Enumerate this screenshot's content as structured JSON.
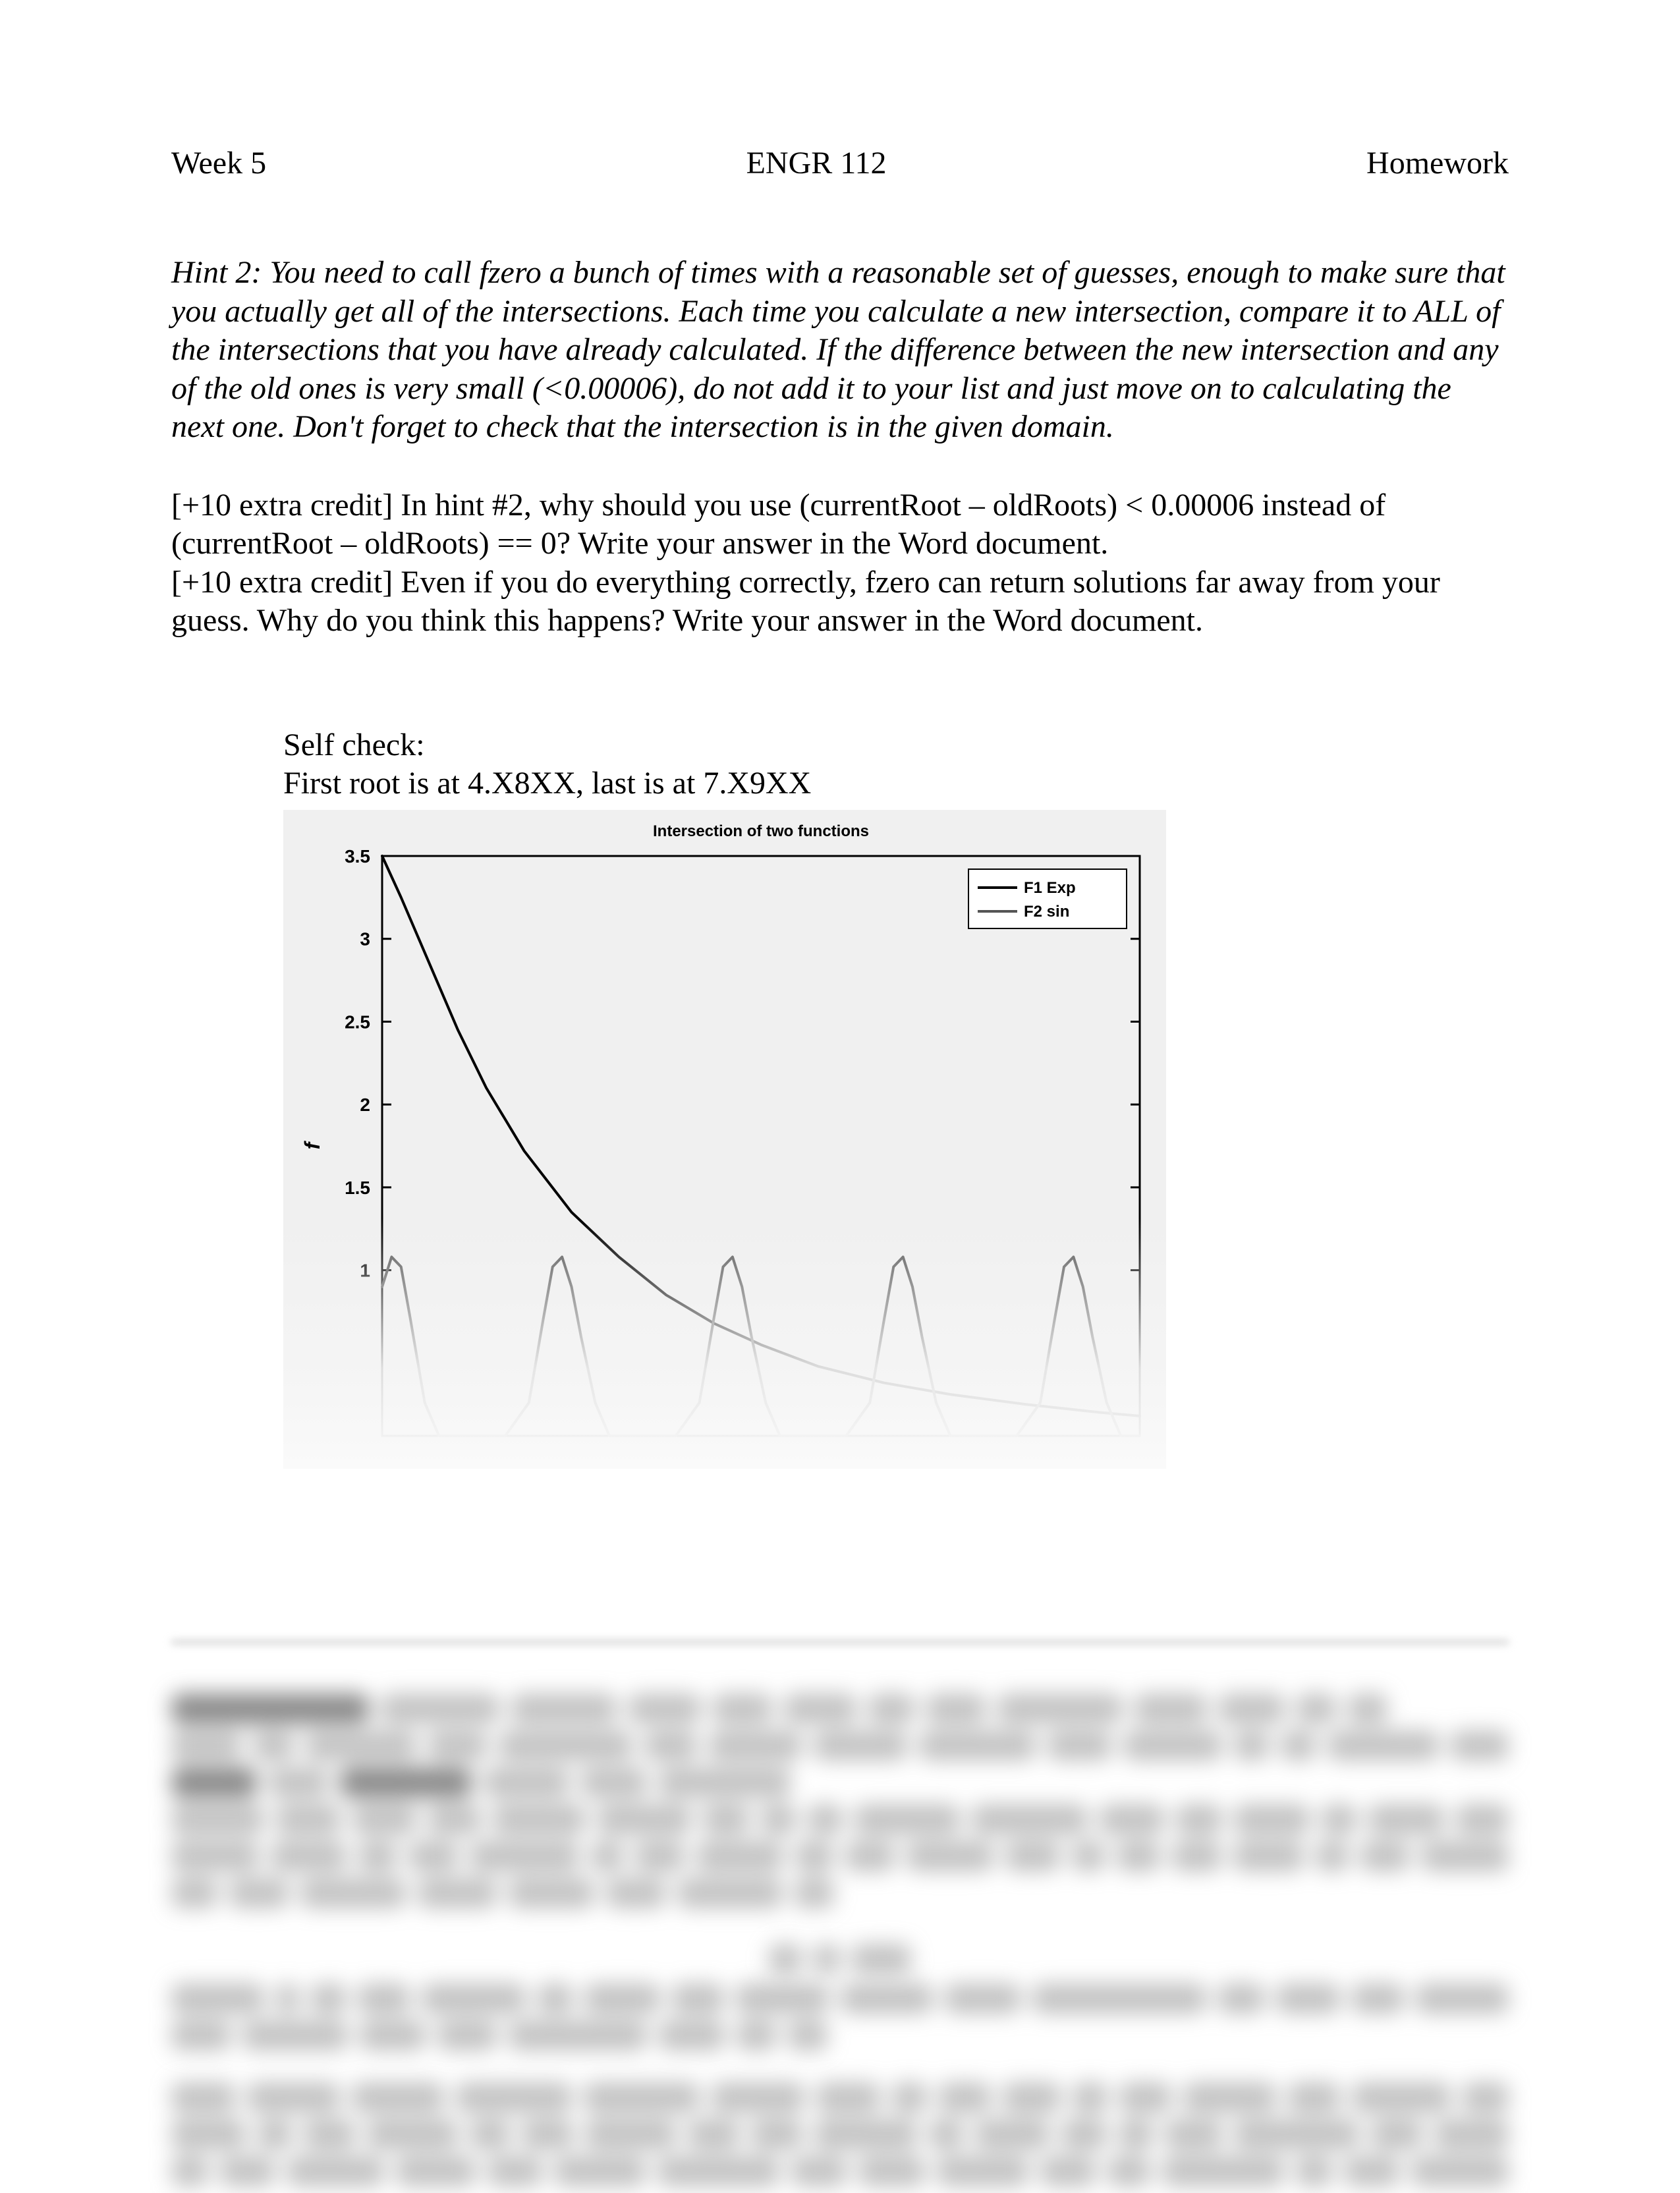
{
  "header": {
    "left": "Week 5",
    "center": "ENGR 112",
    "right": "Homework"
  },
  "hint2": "Hint 2: You need to call fzero a bunch of times with a reasonable set of guesses, enough to make sure that you actually get all of the intersections. Each time you calculate a new intersection, compare it to ALL of the intersections that you have already calculated. If the difference between the new intersection and any of the old ones is very small (<0.00006), do not add it to your list and just move on to calculating the next one. Don't forget to check that the intersection is in the given domain.",
  "ec1": "[+10 extra credit] In hint #2, why should you use (currentRoot – oldRoots) < 0.00006 instead of (currentRoot – oldRoots)  == 0? Write your answer in the Word document.",
  "ec2": "[+10 extra credit] Even if you do everything correctly, fzero can return solutions far away from your guess. Why do you think this happens? Write your answer in the Word document.",
  "selfcheck": {
    "l1": "Self check:",
    "l2": "First root is at 4.X8XX, last is at 7.X9XX"
  },
  "chart": {
    "type": "line",
    "title": "Intersection of two functions",
    "title_fontsize": 16,
    "background_color": "#f0f0f0",
    "axis_color": "#000000",
    "ylabel": "f",
    "label_fontsize": 20,
    "ylim": [
      0,
      3.5
    ],
    "ytick_step": 0.5,
    "yticks": [
      "1",
      "1.5",
      "2",
      "2.5",
      "3",
      "3.5"
    ],
    "xlim": [
      0,
      8
    ],
    "legend": {
      "items": [
        "F1 Exp",
        "F2 sin"
      ],
      "series_colors": [
        "#000000",
        "#555555"
      ],
      "position": "top-right",
      "box_color": "#000000",
      "bg": "#ffffff"
    },
    "series": [
      {
        "name": "F1 Exp",
        "color": "#000000",
        "width": 4,
        "points": [
          [
            0.0,
            3.5
          ],
          [
            0.2,
            3.25
          ],
          [
            0.5,
            2.85
          ],
          [
            0.8,
            2.45
          ],
          [
            1.1,
            2.1
          ],
          [
            1.5,
            1.72
          ],
          [
            2.0,
            1.35
          ],
          [
            2.5,
            1.08
          ],
          [
            3.0,
            0.85
          ],
          [
            3.5,
            0.68
          ],
          [
            4.0,
            0.55
          ],
          [
            4.6,
            0.42
          ],
          [
            5.3,
            0.32
          ],
          [
            6.0,
            0.25
          ],
          [
            6.8,
            0.19
          ],
          [
            7.6,
            0.14
          ],
          [
            8.0,
            0.12
          ]
        ]
      },
      {
        "name": "F2 sin",
        "color": "#555555",
        "width": 4,
        "points": [
          [
            0.0,
            0.9
          ],
          [
            0.1,
            1.08
          ],
          [
            0.2,
            1.02
          ],
          [
            0.3,
            0.7
          ],
          [
            0.45,
            0.2
          ],
          [
            0.6,
            0.0
          ],
          [
            0.8,
            0.0
          ],
          [
            1.05,
            0.0
          ],
          [
            1.3,
            0.0
          ],
          [
            1.55,
            0.2
          ],
          [
            1.7,
            0.7
          ],
          [
            1.8,
            1.02
          ],
          [
            1.9,
            1.08
          ],
          [
            2.0,
            0.9
          ],
          [
            2.1,
            0.6
          ],
          [
            2.25,
            0.2
          ],
          [
            2.4,
            0.0
          ],
          [
            2.6,
            0.0
          ],
          [
            2.85,
            0.0
          ],
          [
            3.1,
            0.0
          ],
          [
            3.35,
            0.2
          ],
          [
            3.5,
            0.7
          ],
          [
            3.6,
            1.02
          ],
          [
            3.7,
            1.08
          ],
          [
            3.8,
            0.9
          ],
          [
            3.9,
            0.6
          ],
          [
            4.05,
            0.2
          ],
          [
            4.2,
            0.0
          ],
          [
            4.4,
            0.0
          ],
          [
            4.65,
            0.0
          ],
          [
            4.9,
            0.0
          ],
          [
            5.15,
            0.2
          ],
          [
            5.3,
            0.7
          ],
          [
            5.4,
            1.02
          ],
          [
            5.5,
            1.08
          ],
          [
            5.6,
            0.9
          ],
          [
            5.7,
            0.6
          ],
          [
            5.85,
            0.2
          ],
          [
            6.0,
            0.0
          ],
          [
            6.2,
            0.0
          ],
          [
            6.45,
            0.0
          ],
          [
            6.7,
            0.0
          ],
          [
            6.95,
            0.2
          ],
          [
            7.1,
            0.7
          ],
          [
            7.2,
            1.02
          ],
          [
            7.3,
            1.08
          ],
          [
            7.4,
            0.9
          ],
          [
            7.5,
            0.6
          ],
          [
            7.65,
            0.2
          ],
          [
            7.8,
            0.0
          ],
          [
            8.0,
            0.0
          ]
        ]
      }
    ]
  }
}
